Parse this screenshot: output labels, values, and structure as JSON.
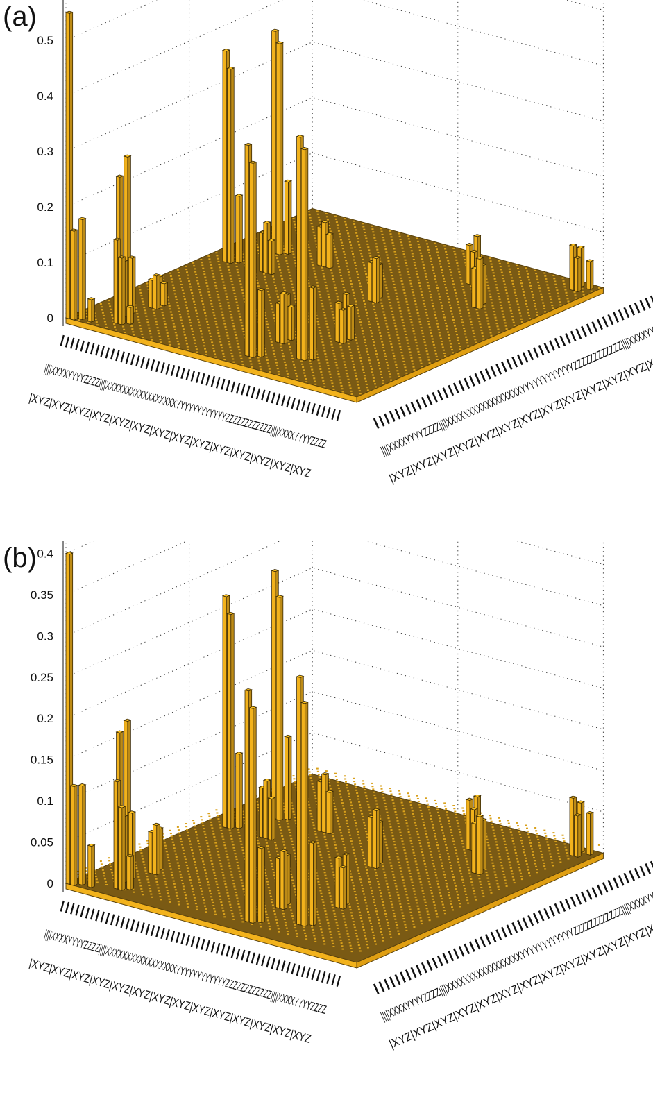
{
  "panels": [
    {
      "label": "(a)"
    },
    {
      "label": "(b)"
    }
  ],
  "axis_tick_labels": {
    "left_rows": [
      "||||||||||||||||||||||||||||||||||||||||||||||||||||||||",
      "||||XXXXYYYYZZZZ||||XXXXXXXXXXXXXXXXXYYYYYYYYYYYYZZZZZZZZZZZZ||||XXXXYYYYZZZZ",
      "|XYZ|XYZ|XYZ|XYZ|XYZ|XYZ|XYZ|XYZ|XYZ|XYZ|XYZ|XYZ|XYZ|XYZ"
    ],
    "right_rows": [
      "||||||||||||||||||||||||||||||||||||||||||||||||||||||||",
      "||||XXXXYYYYZZZZ||||XXXXXXXXXXXXXXXXXYYYYYYYYYYYYZZZZZZZZZZZZ||||XXXXYYYYZZZZ",
      "|XYZ|XYZ|XYZ|XYZ|XYZ|XYZ|XYZ|XYZ|XYZ|XYZ|XYZ|XYZ|XYZ|XYZ"
    ]
  },
  "chart_data": [
    {
      "type": "bar3d",
      "title": "",
      "grid": true,
      "bar_color": "#f2b21c",
      "zlim": [
        0,
        0.6
      ],
      "zticks": [
        "0",
        "0.1",
        "0.2",
        "0.3",
        "0.4",
        "0.5",
        "0.6"
      ],
      "grid_size": 64,
      "background_level": 0.0,
      "bars": [
        {
          "i": 0,
          "j": 0,
          "z": 0.55
        },
        {
          "i": 1,
          "j": 0,
          "z": 0.16
        },
        {
          "i": 2,
          "j": 1,
          "z": 0.18
        },
        {
          "i": 4,
          "j": 1,
          "z": 0.04
        },
        {
          "i": 8,
          "j": 3,
          "z": 0.15
        },
        {
          "i": 9,
          "j": 3,
          "z": 0.12
        },
        {
          "i": 10,
          "j": 4,
          "z": 0.03
        },
        {
          "i": 6,
          "j": 6,
          "z": 0.25
        },
        {
          "i": 7,
          "j": 6,
          "z": 0.1
        },
        {
          "i": 6,
          "j": 8,
          "z": 0.28
        },
        {
          "i": 7,
          "j": 8,
          "z": 0.1
        },
        {
          "i": 8,
          "j": 12,
          "z": 0.05
        },
        {
          "i": 9,
          "j": 12,
          "z": 0.06
        },
        {
          "i": 8,
          "j": 14,
          "z": 0.05
        },
        {
          "i": 9,
          "j": 14,
          "z": 0.04
        },
        {
          "i": 36,
          "j": 4,
          "z": 0.38
        },
        {
          "i": 37,
          "j": 4,
          "z": 0.35
        },
        {
          "i": 38,
          "j": 5,
          "z": 0.12
        },
        {
          "i": 44,
          "j": 8,
          "z": 0.4
        },
        {
          "i": 45,
          "j": 8,
          "z": 0.38
        },
        {
          "i": 46,
          "j": 9,
          "z": 0.13
        },
        {
          "i": 36,
          "j": 12,
          "z": 0.07
        },
        {
          "i": 37,
          "j": 12,
          "z": 0.09
        },
        {
          "i": 36,
          "j": 14,
          "z": 0.08
        },
        {
          "i": 37,
          "j": 14,
          "z": 0.06
        },
        {
          "i": 44,
          "j": 18,
          "z": 0.07
        },
        {
          "i": 45,
          "j": 18,
          "z": 0.06
        },
        {
          "i": 44,
          "j": 20,
          "z": 0.08
        },
        {
          "i": 45,
          "j": 20,
          "z": 0.06
        },
        {
          "i": 4,
          "j": 36,
          "z": 0.38
        },
        {
          "i": 5,
          "j": 36,
          "z": 0.35
        },
        {
          "i": 6,
          "j": 37,
          "z": 0.12
        },
        {
          "i": 8,
          "j": 44,
          "z": 0.4
        },
        {
          "i": 9,
          "j": 44,
          "z": 0.38
        },
        {
          "i": 10,
          "j": 45,
          "z": 0.13
        },
        {
          "i": 12,
          "j": 36,
          "z": 0.07
        },
        {
          "i": 13,
          "j": 36,
          "z": 0.09
        },
        {
          "i": 14,
          "j": 36,
          "z": 0.06
        },
        {
          "i": 18,
          "j": 44,
          "z": 0.07
        },
        {
          "i": 19,
          "j": 44,
          "z": 0.08
        },
        {
          "i": 20,
          "j": 44,
          "z": 0.06
        },
        {
          "i": 36,
          "j": 36,
          "z": 0.07
        },
        {
          "i": 37,
          "j": 36,
          "z": 0.08
        },
        {
          "i": 36,
          "j": 38,
          "z": 0.06
        },
        {
          "i": 52,
          "j": 44,
          "z": 0.07
        },
        {
          "i": 53,
          "j": 44,
          "z": 0.09
        },
        {
          "i": 52,
          "j": 46,
          "z": 0.07
        },
        {
          "i": 44,
          "j": 52,
          "z": 0.07
        },
        {
          "i": 45,
          "j": 52,
          "z": 0.06
        },
        {
          "i": 44,
          "j": 54,
          "z": 0.08
        },
        {
          "i": 60,
          "j": 60,
          "z": 0.08
        },
        {
          "i": 61,
          "j": 60,
          "z": 0.06
        },
        {
          "i": 60,
          "j": 62,
          "z": 0.07
        },
        {
          "i": 62,
          "j": 62,
          "z": 0.05
        }
      ]
    },
    {
      "type": "bar3d",
      "title": "",
      "grid": true,
      "bar_color": "#f2b21c",
      "zlim": [
        0,
        0.45
      ],
      "zticks": [
        "0",
        "0.05",
        "0.1",
        "0.15",
        "0.2",
        "0.25",
        "0.3",
        "0.35",
        "0.4",
        "0.45"
      ],
      "grid_size": 64,
      "background_level": 0.01,
      "bars": [
        {
          "i": 0,
          "j": 0,
          "z": 0.4
        },
        {
          "i": 1,
          "j": 0,
          "z": 0.12
        },
        {
          "i": 2,
          "j": 1,
          "z": 0.12
        },
        {
          "i": 4,
          "j": 1,
          "z": 0.05
        },
        {
          "i": 8,
          "j": 3,
          "z": 0.13
        },
        {
          "i": 9,
          "j": 3,
          "z": 0.1
        },
        {
          "i": 10,
          "j": 4,
          "z": 0.04
        },
        {
          "i": 6,
          "j": 6,
          "z": 0.18
        },
        {
          "i": 7,
          "j": 6,
          "z": 0.08
        },
        {
          "i": 6,
          "j": 8,
          "z": 0.19
        },
        {
          "i": 7,
          "j": 8,
          "z": 0.08
        },
        {
          "i": 8,
          "j": 12,
          "z": 0.05
        },
        {
          "i": 9,
          "j": 12,
          "z": 0.06
        },
        {
          "i": 8,
          "j": 14,
          "z": 0.05
        },
        {
          "i": 36,
          "j": 4,
          "z": 0.28
        },
        {
          "i": 37,
          "j": 4,
          "z": 0.26
        },
        {
          "i": 38,
          "j": 5,
          "z": 0.09
        },
        {
          "i": 44,
          "j": 8,
          "z": 0.3
        },
        {
          "i": 45,
          "j": 8,
          "z": 0.27
        },
        {
          "i": 46,
          "j": 9,
          "z": 0.1
        },
        {
          "i": 36,
          "j": 12,
          "z": 0.06
        },
        {
          "i": 37,
          "j": 12,
          "z": 0.07
        },
        {
          "i": 36,
          "j": 14,
          "z": 0.06
        },
        {
          "i": 44,
          "j": 18,
          "z": 0.06
        },
        {
          "i": 45,
          "j": 18,
          "z": 0.05
        },
        {
          "i": 44,
          "j": 20,
          "z": 0.06
        },
        {
          "i": 4,
          "j": 36,
          "z": 0.28
        },
        {
          "i": 5,
          "j": 36,
          "z": 0.26
        },
        {
          "i": 6,
          "j": 37,
          "z": 0.09
        },
        {
          "i": 8,
          "j": 44,
          "z": 0.3
        },
        {
          "i": 9,
          "j": 44,
          "z": 0.27
        },
        {
          "i": 10,
          "j": 45,
          "z": 0.1
        },
        {
          "i": 12,
          "j": 36,
          "z": 0.06
        },
        {
          "i": 13,
          "j": 36,
          "z": 0.07
        },
        {
          "i": 14,
          "j": 36,
          "z": 0.05
        },
        {
          "i": 18,
          "j": 44,
          "z": 0.06
        },
        {
          "i": 19,
          "j": 44,
          "z": 0.07
        },
        {
          "i": 20,
          "j": 44,
          "z": 0.05
        },
        {
          "i": 36,
          "j": 36,
          "z": 0.06
        },
        {
          "i": 37,
          "j": 36,
          "z": 0.07
        },
        {
          "i": 36,
          "j": 38,
          "z": 0.05
        },
        {
          "i": 52,
          "j": 44,
          "z": 0.06
        },
        {
          "i": 53,
          "j": 44,
          "z": 0.07
        },
        {
          "i": 52,
          "j": 46,
          "z": 0.06
        },
        {
          "i": 44,
          "j": 52,
          "z": 0.06
        },
        {
          "i": 45,
          "j": 52,
          "z": 0.05
        },
        {
          "i": 44,
          "j": 54,
          "z": 0.06
        },
        {
          "i": 60,
          "j": 60,
          "z": 0.07
        },
        {
          "i": 61,
          "j": 60,
          "z": 0.05
        },
        {
          "i": 60,
          "j": 62,
          "z": 0.06
        },
        {
          "i": 62,
          "j": 62,
          "z": 0.05
        }
      ]
    }
  ]
}
